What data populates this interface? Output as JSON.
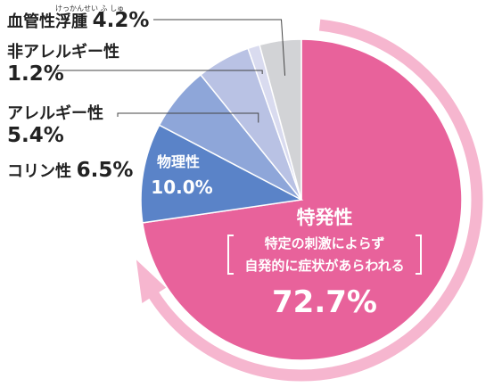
{
  "chart_data": {
    "type": "pie",
    "slices": [
      {
        "name": "特発性",
        "value": 72.7,
        "value_label": "72.7%",
        "subtitle_lines": [
          "特定の刺激によらず",
          "自発的に症状があらわれる"
        ],
        "color": "#e8629b"
      },
      {
        "name": "物理性",
        "value": 10.0,
        "value_label": "10.0%",
        "color": "#5a83c8"
      },
      {
        "name": "コリン性",
        "value": 6.5,
        "value_label": "6.5%",
        "color": "#8ea6d9"
      },
      {
        "name": "アレルギー性",
        "value": 5.4,
        "value_label": "5.4%",
        "color": "#b9c2e4"
      },
      {
        "name": "非アレルギー性",
        "value": 1.2,
        "value_label": "1.2%",
        "color": "#d9dbef"
      },
      {
        "name": "血管性浮腫",
        "value": 4.2,
        "value_label": "4.2%",
        "color": "#d2d3d6"
      }
    ],
    "annotation_ruby": "けっかんせい ふ しゅ",
    "arrow_color": "#f6b6cf"
  }
}
